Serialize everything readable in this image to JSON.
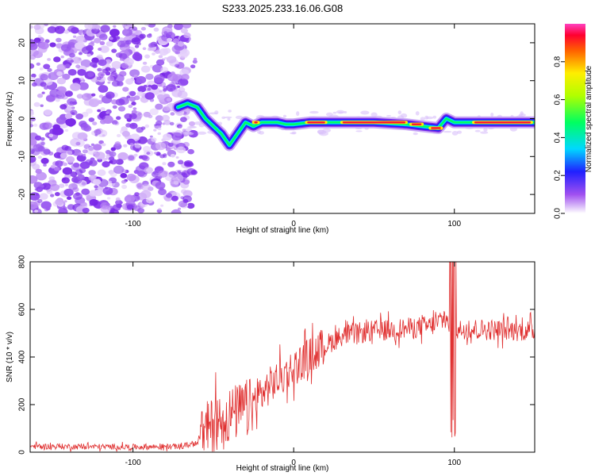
{
  "title": "S233.2025.233.16.06.G08",
  "chart_data": [
    {
      "type": "heatmap",
      "name": "spectrogram",
      "xlabel": "Height of straight line (km)",
      "ylabel": "Frequency (Hz)",
      "xlim": [
        -164,
        150
      ],
      "ylim": [
        -25,
        25
      ],
      "xticks": [
        -100,
        0,
        100
      ],
      "yticks": [
        -20,
        -10,
        0,
        10,
        20
      ],
      "noise_region_x": [
        -164,
        -65
      ],
      "ridge": [
        [
          -72,
          3
        ],
        [
          -66,
          4
        ],
        [
          -60,
          3
        ],
        [
          -55,
          0
        ],
        [
          -50,
          -2
        ],
        [
          -45,
          -4
        ],
        [
          -40,
          -7
        ],
        [
          -35,
          -4
        ],
        [
          -30,
          -1
        ],
        [
          -25,
          -2
        ],
        [
          -20,
          -1
        ],
        [
          -10,
          -1
        ],
        [
          -5,
          -1.5
        ],
        [
          0,
          -1.5
        ],
        [
          10,
          -1
        ],
        [
          30,
          -1
        ],
        [
          50,
          -1
        ],
        [
          70,
          -1.5
        ],
        [
          80,
          -2
        ],
        [
          90,
          -2.5
        ],
        [
          95,
          0
        ],
        [
          100,
          -1
        ],
        [
          120,
          -1
        ],
        [
          150,
          -1
        ]
      ],
      "colorbar": {
        "label": "Normalized spectral amplitude",
        "range": [
          0,
          1
        ],
        "ticks": [
          "0.0",
          "0.2",
          "0.4",
          "0.6",
          "0.8"
        ]
      }
    },
    {
      "type": "line",
      "name": "snr",
      "xlabel": "Height of straight line (km)",
      "ylabel": "SNR (10 * v/v)",
      "xlim": [
        -164,
        150
      ],
      "ylim": [
        0,
        800
      ],
      "xticks": [
        -100,
        0,
        100
      ],
      "yticks": [
        0,
        200,
        400,
        600,
        800
      ],
      "color": "#e03030",
      "trend": [
        [
          -164,
          25
        ],
        [
          -100,
          22
        ],
        [
          -70,
          24
        ],
        [
          -60,
          40
        ],
        [
          -55,
          90
        ],
        [
          -45,
          140
        ],
        [
          -35,
          170
        ],
        [
          -25,
          200
        ],
        [
          -15,
          280
        ],
        [
          -5,
          330
        ],
        [
          5,
          380
        ],
        [
          15,
          430
        ],
        [
          30,
          490
        ],
        [
          50,
          510
        ],
        [
          70,
          520
        ],
        [
          85,
          530
        ],
        [
          95,
          560
        ],
        [
          100,
          500
        ],
        [
          105,
          520
        ],
        [
          120,
          515
        ],
        [
          150,
          510
        ]
      ]
    }
  ],
  "colors": {
    "noise": "#9c5cf0",
    "snr_line": "#e03030"
  }
}
